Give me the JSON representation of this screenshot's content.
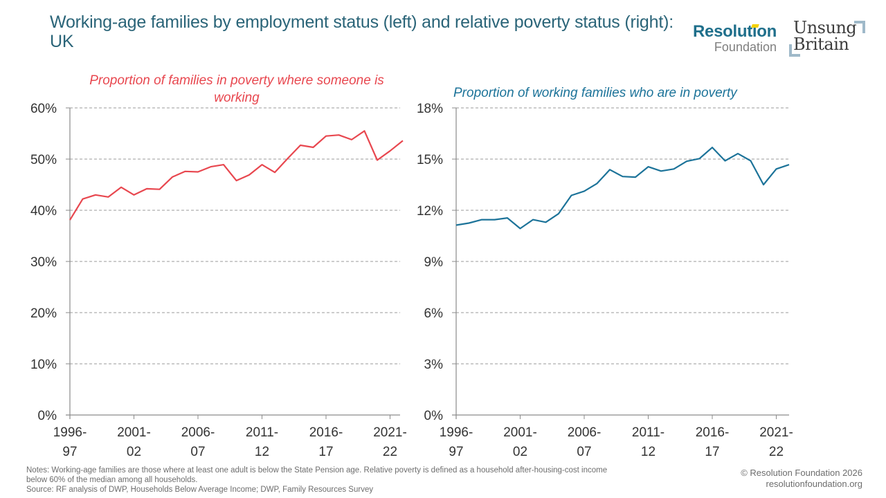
{
  "title": "Working-age families by employment status (left) and relative poverty status (right): UK",
  "logos": {
    "rf_line1": "Resolution",
    "rf_line2": "Foundation",
    "ub_line1": "Unsung",
    "ub_line2": "Britain"
  },
  "colors": {
    "left_series": "#e8474f",
    "right_series": "#1c7399",
    "title": "#2a6478",
    "grid": "#9a9a9a",
    "axis": "#8a8a8a"
  },
  "footer": {
    "notes_line1": "Notes: Working-age families are those where at least one adult is below the State Pension age. Relative poverty is defined as a household after-housing-cost income",
    "notes_line2": "below 60% of the median among all households.",
    "source": "Source: RF analysis of DWP, Households Below Average Income; DWP, Family Resources Survey",
    "copyright": "© Resolution Foundation 2026",
    "website": "resolutionfoundation.org"
  },
  "chart_data": [
    {
      "type": "line",
      "title": "Proportion of families in poverty where someone is working",
      "title_line1": "Proportion of families in poverty where someone is",
      "title_line2": "working",
      "ylim": [
        0,
        60
      ],
      "yticks": [
        0,
        10,
        20,
        30,
        40,
        50,
        60
      ],
      "ytick_labels": [
        "0%",
        "10%",
        "20%",
        "30%",
        "40%",
        "50%",
        "60%"
      ],
      "x_start_year": 1996,
      "xtick_indices": [
        0,
        5,
        10,
        15,
        20,
        25
      ],
      "xtick_labels": [
        [
          "1996-",
          "97"
        ],
        [
          "2001-",
          "02"
        ],
        [
          "2006-",
          "07"
        ],
        [
          "2011-",
          "12"
        ],
        [
          "2016-",
          "17"
        ],
        [
          "2021-",
          "22"
        ]
      ],
      "grid": true,
      "series": [
        {
          "name": "Proportion of families in poverty where someone is working",
          "values": [
            38.1,
            42.2,
            43.0,
            42.6,
            44.5,
            43.0,
            44.2,
            44.1,
            46.5,
            47.6,
            47.5,
            48.5,
            48.9,
            45.8,
            46.9,
            48.9,
            47.4,
            50.1,
            52.7,
            52.3,
            54.5,
            54.7,
            53.8,
            55.5,
            49.8,
            51.6,
            53.6
          ]
        }
      ]
    },
    {
      "type": "line",
      "title": "Proportion of working families who are in poverty",
      "ylim": [
        0,
        18
      ],
      "yticks": [
        0,
        3,
        6,
        9,
        12,
        15,
        18
      ],
      "ytick_labels": [
        "0%",
        "3%",
        "6%",
        "9%",
        "12%",
        "15%",
        "18%"
      ],
      "x_start_year": 1996,
      "xtick_indices": [
        0,
        5,
        10,
        15,
        20,
        25
      ],
      "xtick_labels": [
        [
          "1996-",
          "97"
        ],
        [
          "2001-",
          "02"
        ],
        [
          "2006-",
          "07"
        ],
        [
          "2011-",
          "12"
        ],
        [
          "2016-",
          "17"
        ],
        [
          "2021-",
          "22"
        ]
      ],
      "grid": true,
      "series": [
        {
          "name": "Proportion of working families who are in poverty",
          "values": [
            11.13,
            11.25,
            11.45,
            11.45,
            11.55,
            10.93,
            11.45,
            11.3,
            11.8,
            12.87,
            13.12,
            13.57,
            14.38,
            13.98,
            13.94,
            14.55,
            14.3,
            14.42,
            14.87,
            15.03,
            15.68,
            14.9,
            15.32,
            14.9,
            13.5,
            14.42,
            14.67
          ]
        }
      ]
    }
  ]
}
